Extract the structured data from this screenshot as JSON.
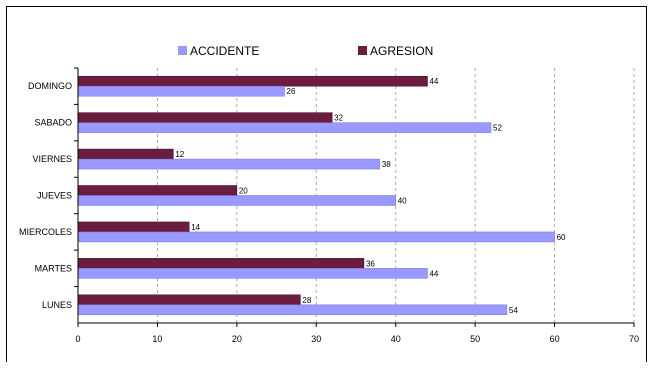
{
  "chart_data": {
    "type": "bar",
    "orientation": "horizontal",
    "categories": [
      "LUNES",
      "MARTES",
      "MIERCOLES",
      "JUEVES",
      "VIERNES",
      "SABADO",
      "DOMINGO"
    ],
    "series": [
      {
        "name": "AGRESION",
        "values": [
          28,
          36,
          14,
          20,
          12,
          32,
          44
        ],
        "color": "#6b1d3f"
      },
      {
        "name": "ACCIDENTE",
        "values": [
          54,
          44,
          60,
          40,
          38,
          52,
          26
        ],
        "color": "#9999ff"
      }
    ],
    "xlim": [
      0,
      70
    ],
    "xticks": [
      0,
      10,
      20,
      30,
      40,
      50,
      60,
      70
    ],
    "grid": "vertical-dashed",
    "legend_position": "top",
    "data_labels": true
  }
}
